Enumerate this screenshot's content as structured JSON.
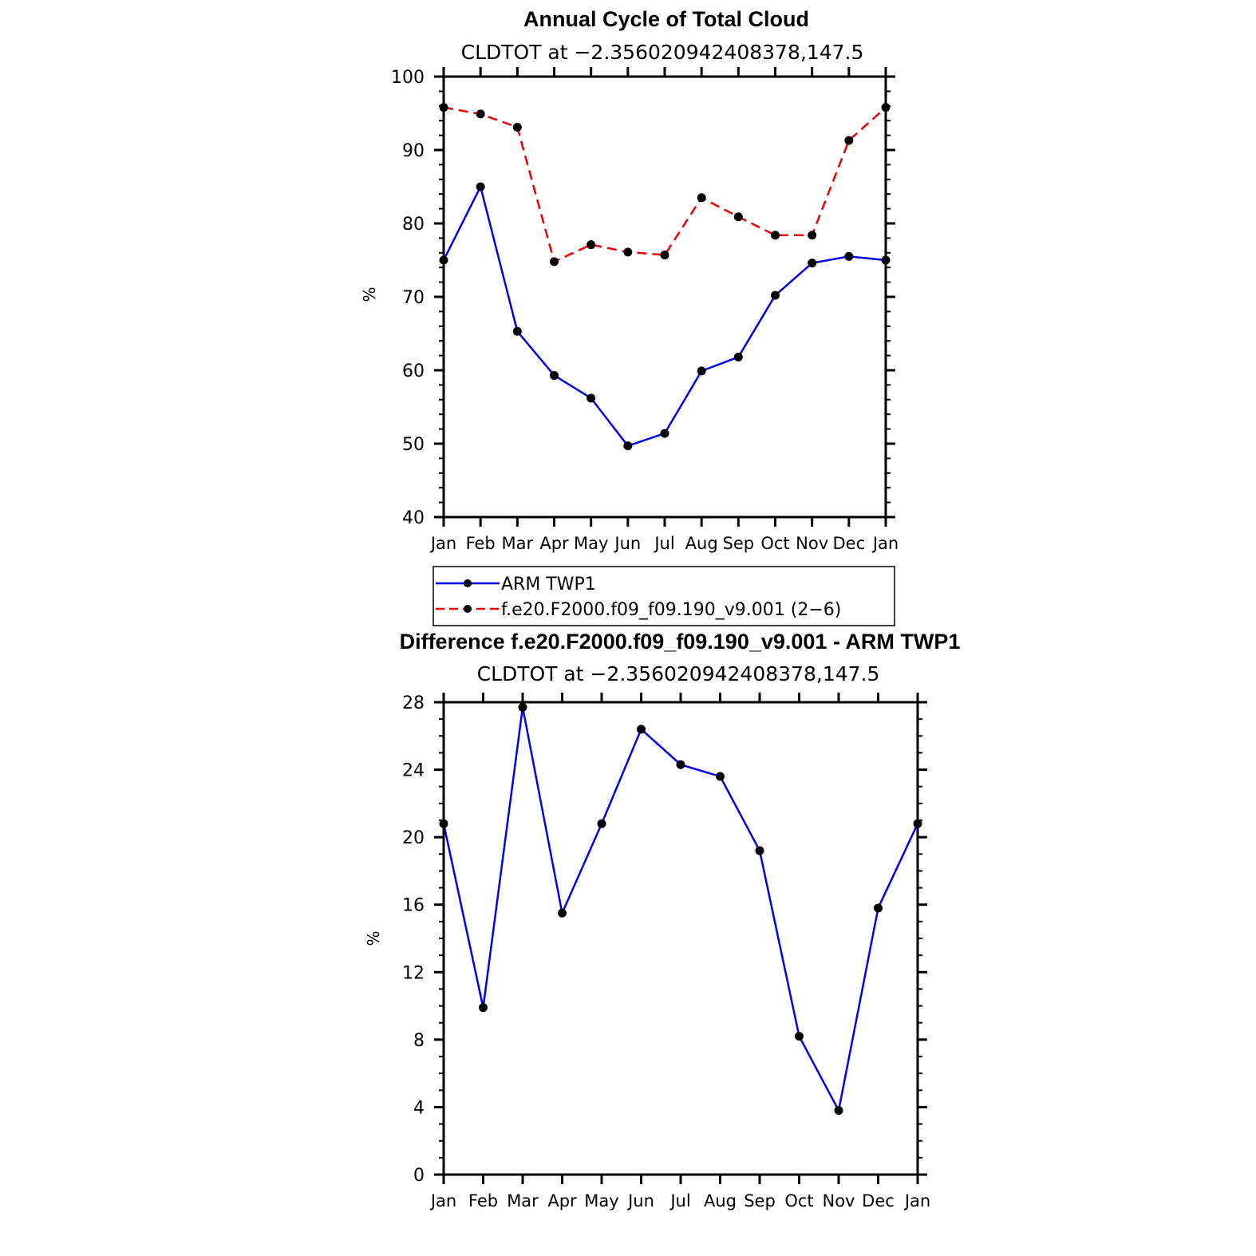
{
  "colors": {
    "series_obs": "#0000ee",
    "series_model": "#ee0000",
    "marker": "#000000"
  },
  "chart_data": [
    {
      "type": "line",
      "title": "Annual Cycle of Total Cloud",
      "subtitle": "CLDTOT at −2.356020942408378,147.5",
      "xlabel": "",
      "ylabel": "%",
      "ylim": [
        40,
        100
      ],
      "yticks": [
        40,
        50,
        60,
        70,
        80,
        90,
        100
      ],
      "categories": [
        "Jan",
        "Feb",
        "Mar",
        "Apr",
        "May",
        "Jun",
        "Jul",
        "Aug",
        "Sep",
        "Oct",
        "Nov",
        "Dec",
        "Jan"
      ],
      "series": [
        {
          "name": "ARM TWP1",
          "style": "solid",
          "color": "#0000ee",
          "values": [
            75.0,
            85.0,
            65.3,
            59.3,
            56.2,
            49.7,
            51.4,
            59.9,
            61.8,
            70.2,
            74.6,
            75.5,
            75.0
          ]
        },
        {
          "name": "f.e20.F2000.f09_f09.190_v9.001 (2−6)",
          "style": "dashed",
          "color": "#ee0000",
          "values": [
            95.8,
            94.9,
            93.1,
            74.8,
            77.1,
            76.1,
            75.7,
            83.5,
            80.9,
            78.4,
            78.4,
            91.3,
            95.8
          ]
        }
      ],
      "legend": "below"
    },
    {
      "type": "line",
      "title": "Difference f.e20.F2000.f09_f09.190_v9.001 - ARM TWP1",
      "subtitle": "CLDTOT at −2.356020942408378,147.5",
      "xlabel": "",
      "ylabel": "%",
      "ylim": [
        0,
        28
      ],
      "yticks": [
        0,
        4,
        8,
        12,
        16,
        20,
        24,
        28
      ],
      "categories": [
        "Jan",
        "Feb",
        "Mar",
        "Apr",
        "May",
        "Jun",
        "Jul",
        "Aug",
        "Sep",
        "Oct",
        "Nov",
        "Dec",
        "Jan"
      ],
      "series": [
        {
          "name": "Difference",
          "style": "solid",
          "color": "#0000ee",
          "values": [
            20.8,
            9.9,
            27.7,
            15.5,
            20.8,
            26.4,
            24.3,
            23.6,
            19.2,
            8.2,
            3.8,
            15.8,
            20.8
          ]
        }
      ]
    }
  ]
}
